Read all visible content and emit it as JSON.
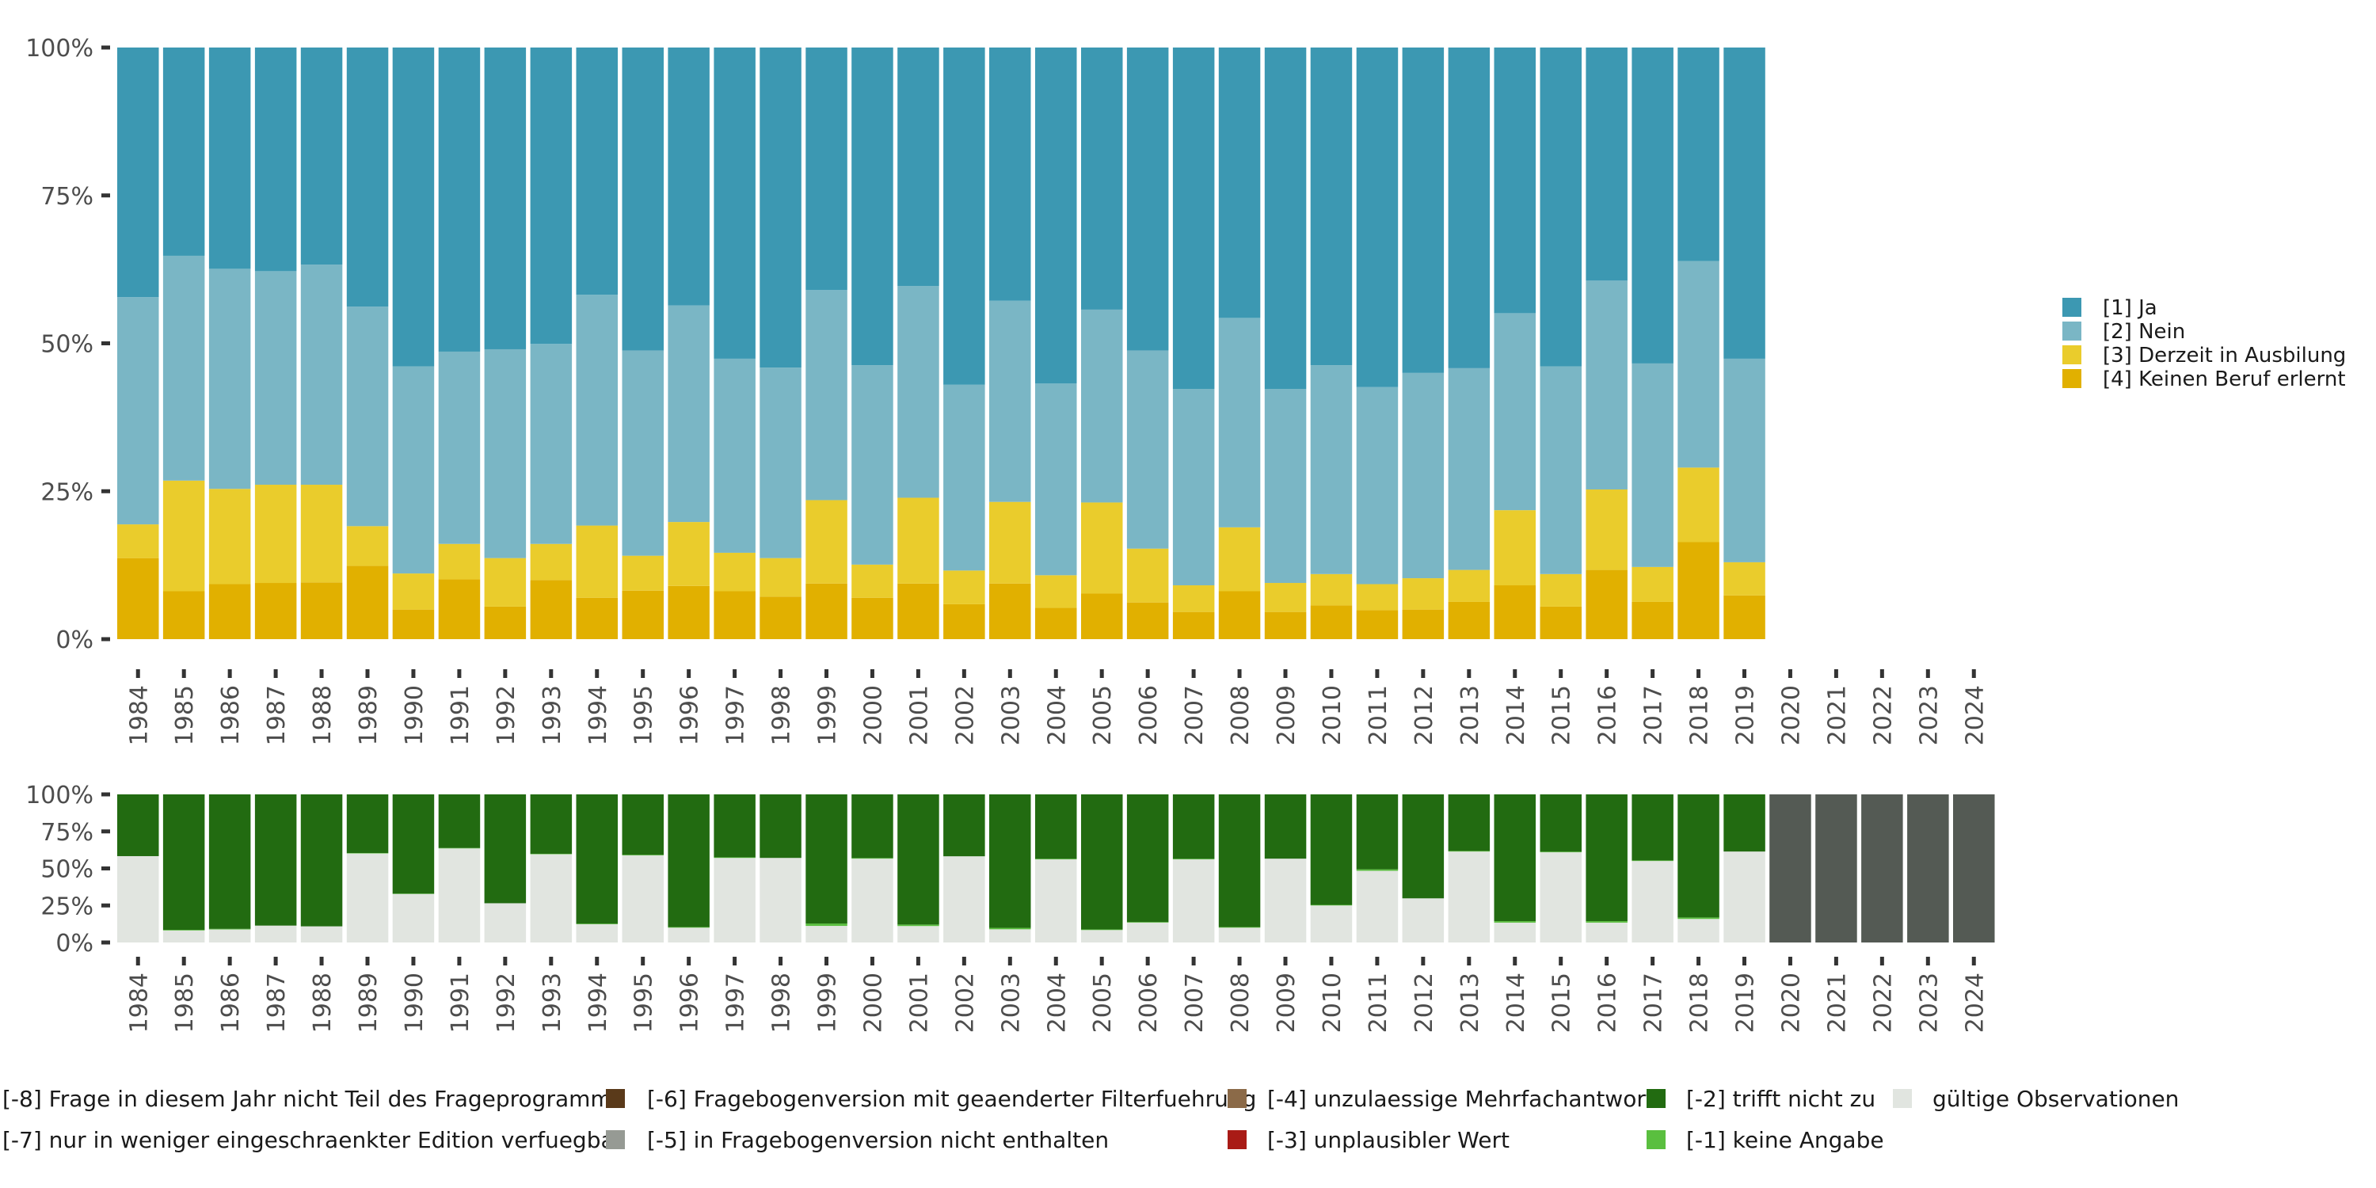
{
  "chart_data": [
    {
      "id": "top",
      "type": "bar",
      "stacked": true,
      "normalized": true,
      "title": "",
      "xlabel": "",
      "ylabel": "",
      "ylim": [
        0,
        100
      ],
      "y_ticks": [
        "0%",
        "25%",
        "50%",
        "75%",
        "100%"
      ],
      "y_tick_values": [
        0,
        25,
        50,
        75,
        100
      ],
      "categories": [
        "1984",
        "1985",
        "1986",
        "1987",
        "1988",
        "1989",
        "1990",
        "1991",
        "1992",
        "1993",
        "1994",
        "1995",
        "1996",
        "1997",
        "1998",
        "1999",
        "2000",
        "2001",
        "2002",
        "2003",
        "2004",
        "2005",
        "2006",
        "2007",
        "2008",
        "2009",
        "2010",
        "2011",
        "2012",
        "2013",
        "2014",
        "2015",
        "2016",
        "2017",
        "2018",
        "2019",
        "2020",
        "2021",
        "2022",
        "2023",
        "2024"
      ],
      "legend_position": "right",
      "series": [
        {
          "name": "[4] Keinen Beruf erlernt",
          "color": "#e1b000",
          "values": [
            13.7,
            8.1,
            9.3,
            9.5,
            9.6,
            12.4,
            5.0,
            10.1,
            5.5,
            10.0,
            7.0,
            8.2,
            9.0,
            8.1,
            7.2,
            9.4,
            7.0,
            9.4,
            5.9,
            9.4,
            5.3,
            7.7,
            6.2,
            4.6,
            8.1,
            4.6,
            5.7,
            4.9,
            5.0,
            6.3,
            9.1,
            5.5,
            11.7,
            6.3,
            16.4,
            7.4,
            null,
            null,
            null,
            null,
            null
          ]
        },
        {
          "name": "[3] Derzeit in Ausbilung",
          "color": "#eacc2c",
          "values": [
            5.7,
            18.7,
            16.1,
            16.6,
            16.5,
            6.7,
            6.1,
            6.0,
            8.2,
            6.1,
            12.2,
            5.9,
            10.8,
            6.5,
            6.5,
            14.1,
            5.6,
            14.5,
            5.7,
            13.8,
            5.5,
            15.4,
            9.1,
            4.5,
            10.8,
            4.9,
            5.3,
            4.4,
            5.3,
            5.4,
            12.7,
            5.5,
            13.6,
            5.9,
            12.6,
            5.6,
            null,
            null,
            null,
            null,
            null
          ]
        },
        {
          "name": "[2] Nein",
          "color": "#7ab6c5",
          "values": [
            38.4,
            38.0,
            37.2,
            36.1,
            37.2,
            37.1,
            35.0,
            32.5,
            35.3,
            33.8,
            39.0,
            34.7,
            36.6,
            32.8,
            32.2,
            35.5,
            33.7,
            35.8,
            31.4,
            34.0,
            32.4,
            32.6,
            33.5,
            33.2,
            35.4,
            32.8,
            35.3,
            33.3,
            34.7,
            34.1,
            33.3,
            35.1,
            35.3,
            34.4,
            34.9,
            34.4,
            null,
            null,
            null,
            null,
            null
          ]
        },
        {
          "name": "[1] Ja",
          "color": "#3c98b2",
          "values": [
            42.2,
            35.2,
            37.4,
            37.8,
            36.7,
            43.8,
            53.9,
            51.4,
            51.0,
            50.1,
            41.8,
            51.2,
            43.6,
            52.6,
            54.1,
            41.0,
            53.7,
            40.3,
            57.0,
            42.8,
            56.8,
            44.3,
            51.2,
            57.7,
            45.7,
            57.7,
            53.7,
            57.4,
            55.0,
            54.2,
            44.9,
            53.9,
            39.4,
            53.4,
            36.1,
            52.6,
            null,
            null,
            null,
            null,
            null
          ]
        }
      ]
    },
    {
      "id": "bottom",
      "type": "bar",
      "stacked": true,
      "normalized": true,
      "title": "",
      "xlabel": "",
      "ylabel": "",
      "ylim": [
        0,
        100
      ],
      "y_ticks": [
        "0%",
        "25%",
        "50%",
        "75%",
        "100%"
      ],
      "y_tick_values": [
        0,
        25,
        50,
        75,
        100
      ],
      "categories": [
        "1984",
        "1985",
        "1986",
        "1987",
        "1988",
        "1989",
        "1990",
        "1991",
        "1992",
        "1993",
        "1994",
        "1995",
        "1996",
        "1997",
        "1998",
        "1999",
        "2000",
        "2001",
        "2002",
        "2003",
        "2004",
        "2005",
        "2006",
        "2007",
        "2008",
        "2009",
        "2010",
        "2011",
        "2012",
        "2013",
        "2014",
        "2015",
        "2016",
        "2017",
        "2018",
        "2019",
        "2020",
        "2021",
        "2022",
        "2023",
        "2024"
      ],
      "legend_position": "bottom",
      "series": [
        {
          "name": "gültige Observationen",
          "color": "#e1e5e0",
          "values": [
            58.3,
            8.1,
            8.8,
            11.4,
            10.9,
            60.1,
            32.7,
            63.5,
            26.5,
            59.6,
            12.3,
            58.8,
            10.0,
            57.1,
            57.1,
            11.2,
            56.6,
            11.1,
            58.2,
            8.9,
            56.1,
            8.4,
            13.4,
            56.1,
            10.0,
            56.6,
            25.0,
            48.4,
            29.8,
            61.4,
            13.4,
            60.9,
            13.4,
            55.0,
            15.9,
            61.4,
            0,
            0,
            0,
            0,
            0
          ]
        },
        {
          "name": "[-1] keine Angabe",
          "color": "#5abf3f",
          "values": [
            0,
            0.4,
            0.4,
            0,
            0,
            0.3,
            0.3,
            0.3,
            0,
            0.3,
            0.4,
            0.4,
            0.4,
            0.4,
            0,
            1.6,
            0.4,
            1.0,
            0,
            1.0,
            0.4,
            0.4,
            0.4,
            0.4,
            0.4,
            0,
            0.4,
            1.0,
            0,
            0.4,
            1.0,
            0.4,
            1.0,
            0.4,
            1.0,
            0,
            0,
            0,
            0,
            0,
            0
          ]
        },
        {
          "name": "[-2] trifft nicht zu",
          "color": "#226b11",
          "values": [
            41.7,
            91.5,
            90.8,
            88.6,
            89.1,
            39.6,
            67.0,
            36.2,
            73.5,
            40.1,
            87.3,
            40.8,
            89.6,
            42.5,
            42.9,
            87.2,
            43.0,
            87.9,
            41.8,
            90.1,
            43.5,
            91.2,
            86.2,
            43.5,
            89.6,
            43.4,
            74.6,
            50.6,
            70.2,
            38.2,
            85.6,
            38.7,
            85.6,
            44.6,
            83.1,
            38.6,
            0,
            0,
            0,
            0,
            0
          ]
        },
        {
          "name": "[-8] Frage in diesem Jahr nicht Teil des Frageprogramms",
          "color": "#545a54",
          "values": [
            0,
            0,
            0,
            0,
            0,
            0,
            0,
            0,
            0,
            0,
            0,
            0,
            0,
            0,
            0,
            0,
            0,
            0,
            0,
            0,
            0,
            0,
            0,
            0,
            0,
            0,
            0,
            0,
            0,
            0,
            0,
            0,
            0,
            0,
            0,
            0,
            100,
            100,
            100,
            100,
            100
          ]
        }
      ]
    }
  ],
  "top_legend": [
    {
      "label": "[1] Ja",
      "color": "#3c98b2"
    },
    {
      "label": "[2] Nein",
      "color": "#7ab6c5"
    },
    {
      "label": "[3] Derzeit in Ausbilung",
      "color": "#eacc2c"
    },
    {
      "label": "[4] Keinen Beruf erlernt",
      "color": "#e1b000"
    }
  ],
  "bottom_legend": [
    {
      "label": "[-8] Frage in diesem Jahr nicht Teil des Frageprogramms",
      "color": "#545a54"
    },
    {
      "label": "[-7] nur in weniger eingeschraenkter Edition verfuegbar",
      "color": "#3a3f3a"
    },
    {
      "label": "[-6] Fragebogenversion mit geaenderter Filterfuehrung",
      "color": "#5a3a1a"
    },
    {
      "label": "[-5] in Fragebogenversion nicht enthalten",
      "color": "#969a94"
    },
    {
      "label": "[-4] unzulaessige Mehrfachantwort",
      "color": "#8b6a48"
    },
    {
      "label": "[-3] unplausibler Wert",
      "color": "#a91b16"
    },
    {
      "label": "[-2] trifft nicht zu",
      "color": "#226b11"
    },
    {
      "label": "[-1] keine Angabe",
      "color": "#5abf3f"
    },
    {
      "label": "gültige Observationen",
      "color": "#e1e5e0"
    }
  ]
}
